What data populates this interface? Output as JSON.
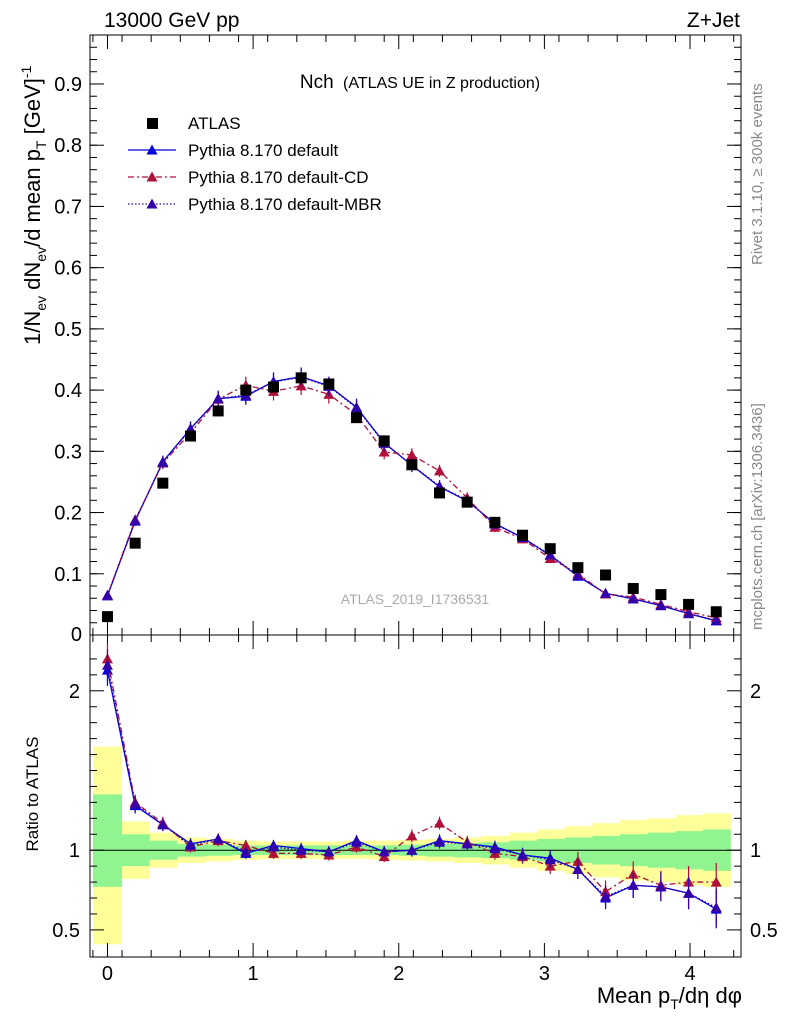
{
  "header": {
    "energy_label": "13000 GeV pp",
    "process_label": "Z+Jet",
    "plot_title_main": "Nch",
    "plot_title_sub": "(ATLAS UE in Z production)",
    "watermark": "ATLAS_2019_I1736531",
    "side_rivet": "Rivet 3.1.10, ≥ 300k events",
    "side_mcplots": "mcplots.cern.ch [arXiv:1306.3436]"
  },
  "axes": {
    "ylabel_top": "1/N_ev dN_ev/d mean p_T [GeV]^-1",
    "ylabel_bottom": "Ratio to ATLAS",
    "xlabel": "Mean p_T/dη dφ"
  },
  "legend": [
    {
      "key": "atlas",
      "label": "ATLAS"
    },
    {
      "key": "def",
      "label": "Pythia 8.170 default"
    },
    {
      "key": "cd",
      "label": "Pythia 8.170 default-CD"
    },
    {
      "key": "mbr",
      "label": "Pythia 8.170 default-MBR"
    }
  ],
  "colors": {
    "atlas": "#000000",
    "def": "#0000dd",
    "cd": "#b0103a",
    "mbr": "#3300aa",
    "band_inner": "#90f590",
    "band_outer": "#ffff99"
  },
  "chart_data": {
    "type": "scatter",
    "x_range": [
      -0.12,
      4.35
    ],
    "main_ylim": [
      0,
      0.98
    ],
    "ratio_ylim": [
      0.33,
      2.35
    ],
    "x_ticks": [
      0,
      1,
      2,
      3,
      4
    ],
    "main_y_ticks": [
      0.1,
      0.2,
      0.3,
      0.4,
      0.5,
      0.6,
      0.7,
      0.8,
      0.9
    ],
    "main_y_tick_labels": [
      "0.1",
      "0.2",
      "0.3",
      "0.4",
      "0.5",
      "0.6",
      "0.7",
      "0.8",
      "0.9"
    ],
    "main_y_zero_label": "0",
    "ratio_y_ticks": [
      0.5,
      1,
      2
    ],
    "ratio_y_tick_labels": [
      "0.5",
      "1",
      "2"
    ],
    "x": [
      0.0,
      0.19,
      0.38,
      0.57,
      0.76,
      0.95,
      1.14,
      1.33,
      1.52,
      1.71,
      1.9,
      2.09,
      2.28,
      2.47,
      2.66,
      2.85,
      3.04,
      3.23,
      3.42,
      3.61,
      3.8,
      3.99,
      4.18
    ],
    "bins": [
      -0.1,
      0.1,
      0.29,
      0.48,
      0.67,
      0.86,
      1.05,
      1.24,
      1.43,
      1.62,
      1.81,
      2.0,
      2.19,
      2.38,
      2.57,
      2.76,
      2.95,
      3.14,
      3.33,
      3.52,
      3.71,
      3.9,
      4.09,
      4.28
    ],
    "series": [
      {
        "name": "ATLAS",
        "key": "atlas",
        "values": [
          0.03,
          0.15,
          0.248,
          0.325,
          0.366,
          0.4,
          0.405,
          0.42,
          0.41,
          0.355,
          0.317,
          0.278,
          0.232,
          0.217,
          0.184,
          0.163,
          0.141,
          0.11,
          0.098,
          0.076,
          0.066,
          0.05,
          0.038
        ]
      },
      {
        "name": "Pythia 8.170 default",
        "key": "def",
        "values": [
          0.064,
          0.186,
          0.283,
          0.337,
          0.386,
          0.39,
          0.414,
          0.422,
          0.407,
          0.372,
          0.314,
          0.277,
          0.242,
          0.219,
          0.182,
          0.159,
          0.13,
          0.096,
          0.068,
          0.059,
          0.048,
          0.035,
          0.023
        ],
        "errors": [
          0.005,
          0.008,
          0.01,
          0.012,
          0.013,
          0.014,
          0.015,
          0.015,
          0.015,
          0.014,
          0.012,
          0.011,
          0.01,
          0.009,
          0.008,
          0.007,
          0.006,
          0.005,
          0.005,
          0.004,
          0.004,
          0.003,
          0.003
        ]
      },
      {
        "name": "Pythia 8.170 default-CD",
        "key": "cd",
        "values": [
          0.065,
          0.188,
          0.281,
          0.33,
          0.385,
          0.408,
          0.398,
          0.407,
          0.393,
          0.36,
          0.299,
          0.294,
          0.268,
          0.224,
          0.176,
          0.157,
          0.125,
          0.1,
          0.067,
          0.062,
          0.05,
          0.038,
          0.028
        ],
        "errors": [
          0.005,
          0.008,
          0.01,
          0.012,
          0.013,
          0.014,
          0.015,
          0.015,
          0.015,
          0.014,
          0.012,
          0.011,
          0.01,
          0.009,
          0.008,
          0.007,
          0.006,
          0.005,
          0.005,
          0.004,
          0.004,
          0.003,
          0.003
        ]
      },
      {
        "name": "Pythia 8.170 default-MBR",
        "key": "mbr",
        "values": [
          0.065,
          0.187,
          0.282,
          0.336,
          0.386,
          0.392,
          0.413,
          0.421,
          0.406,
          0.371,
          0.313,
          0.278,
          0.243,
          0.22,
          0.181,
          0.159,
          0.131,
          0.097,
          0.068,
          0.059,
          0.048,
          0.035,
          0.024
        ],
        "errors": [
          0.005,
          0.008,
          0.01,
          0.012,
          0.013,
          0.014,
          0.015,
          0.015,
          0.015,
          0.014,
          0.012,
          0.011,
          0.01,
          0.009,
          0.008,
          0.007,
          0.006,
          0.005,
          0.005,
          0.004,
          0.004,
          0.003,
          0.003
        ]
      }
    ],
    "ratio_series": [
      {
        "key": "def",
        "values": [
          2.13,
          1.28,
          1.16,
          1.04,
          1.07,
          0.98,
          1.03,
          1.01,
          0.99,
          1.06,
          0.99,
          1.0,
          1.06,
          1.04,
          1.02,
          0.97,
          0.95,
          0.88,
          0.7,
          0.78,
          0.77,
          0.73,
          0.63
        ],
        "errors": [
          0.1,
          0.05,
          0.04,
          0.035,
          0.035,
          0.035,
          0.035,
          0.035,
          0.035,
          0.035,
          0.035,
          0.04,
          0.04,
          0.04,
          0.04,
          0.045,
          0.05,
          0.06,
          0.07,
          0.08,
          0.09,
          0.1,
          0.12
        ]
      },
      {
        "key": "cd",
        "values": [
          2.2,
          1.3,
          1.17,
          1.02,
          1.06,
          1.03,
          0.98,
          0.98,
          0.97,
          1.02,
          0.96,
          1.09,
          1.17,
          1.05,
          0.98,
          0.96,
          0.9,
          0.93,
          0.74,
          0.85,
          0.78,
          0.8,
          0.8
        ],
        "errors": [
          0.1,
          0.05,
          0.04,
          0.035,
          0.035,
          0.035,
          0.035,
          0.035,
          0.035,
          0.035,
          0.035,
          0.04,
          0.04,
          0.04,
          0.04,
          0.045,
          0.05,
          0.06,
          0.07,
          0.08,
          0.09,
          0.1,
          0.12
        ]
      },
      {
        "key": "mbr",
        "values": [
          2.16,
          1.29,
          1.16,
          1.03,
          1.07,
          0.99,
          1.02,
          1.0,
          0.99,
          1.05,
          0.99,
          1.0,
          1.05,
          1.04,
          1.01,
          0.97,
          0.94,
          0.88,
          0.71,
          0.78,
          0.77,
          0.73,
          0.64
        ],
        "errors": [
          0.1,
          0.05,
          0.04,
          0.035,
          0.035,
          0.035,
          0.035,
          0.035,
          0.035,
          0.035,
          0.035,
          0.04,
          0.04,
          0.04,
          0.04,
          0.045,
          0.05,
          0.06,
          0.07,
          0.08,
          0.09,
          0.1,
          0.12
        ]
      }
    ],
    "band_inner": {
      "lo": [
        0.77,
        0.9,
        0.94,
        0.96,
        0.965,
        0.97,
        0.97,
        0.97,
        0.97,
        0.97,
        0.97,
        0.965,
        0.96,
        0.955,
        0.95,
        0.94,
        0.93,
        0.92,
        0.91,
        0.9,
        0.89,
        0.88,
        0.87
      ],
      "hi": [
        1.35,
        1.1,
        1.06,
        1.04,
        1.035,
        1.03,
        1.03,
        1.03,
        1.03,
        1.03,
        1.03,
        1.035,
        1.04,
        1.045,
        1.05,
        1.06,
        1.07,
        1.08,
        1.09,
        1.1,
        1.11,
        1.12,
        1.13
      ]
    },
    "band_outer": {
      "lo": [
        0.41,
        0.82,
        0.89,
        0.92,
        0.93,
        0.94,
        0.945,
        0.945,
        0.945,
        0.945,
        0.94,
        0.935,
        0.93,
        0.92,
        0.91,
        0.89,
        0.87,
        0.85,
        0.83,
        0.81,
        0.8,
        0.78,
        0.77
      ],
      "hi": [
        1.65,
        1.18,
        1.11,
        1.08,
        1.07,
        1.06,
        1.055,
        1.055,
        1.055,
        1.06,
        1.06,
        1.065,
        1.07,
        1.08,
        1.09,
        1.11,
        1.13,
        1.15,
        1.17,
        1.19,
        1.2,
        1.22,
        1.23
      ]
    }
  }
}
